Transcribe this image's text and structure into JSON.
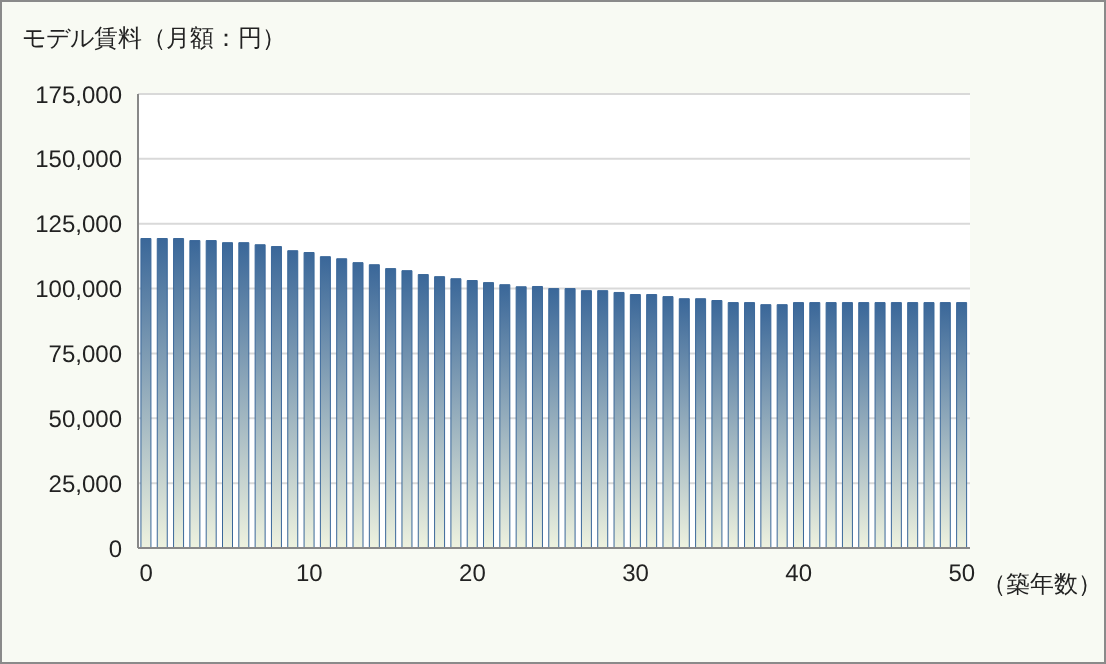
{
  "chart_data": {
    "type": "bar",
    "title": "モデル賃料（月額：円）",
    "xlabel": "（築年数）",
    "categories": [
      "0",
      null,
      null,
      null,
      null,
      null,
      null,
      null,
      null,
      null,
      "10",
      null,
      null,
      null,
      null,
      null,
      null,
      null,
      null,
      null,
      "20",
      null,
      null,
      null,
      null,
      null,
      null,
      null,
      null,
      null,
      "30",
      null,
      null,
      null,
      null,
      null,
      null,
      null,
      null,
      null,
      "40",
      null,
      null,
      null,
      null,
      null,
      null,
      null,
      null,
      null,
      "50"
    ],
    "values": [
      119300,
      119300,
      119300,
      118500,
      118500,
      117700,
      117700,
      116900,
      116200,
      114600,
      113900,
      112300,
      111500,
      110000,
      109200,
      107700,
      106900,
      105400,
      104600,
      103800,
      103100,
      102300,
      101500,
      100700,
      100800,
      100000,
      100000,
      99200,
      99200,
      98500,
      97700,
      97700,
      96900,
      96100,
      96100,
      95400,
      94600,
      94600,
      93800,
      93800,
      94600,
      94600,
      94600,
      94600,
      94600,
      94600,
      94600,
      94600,
      94600,
      94600,
      94600
    ],
    "color": "#3a6799",
    "ylim": [
      0,
      175000
    ],
    "yticks": [
      0,
      {
        "value": 25000,
        "label": "25,000"
      },
      {
        "value": 50000,
        "label": "50,000"
      },
      {
        "value": 75000,
        "label": "75,000"
      },
      {
        "value": 100000,
        "label": "100,000"
      },
      {
        "value": 125000,
        "label": "125,000"
      },
      {
        "value": 150000,
        "label": "150,000"
      },
      {
        "value": 175000,
        "label": "175,000"
      }
    ],
    "grid": "y"
  }
}
